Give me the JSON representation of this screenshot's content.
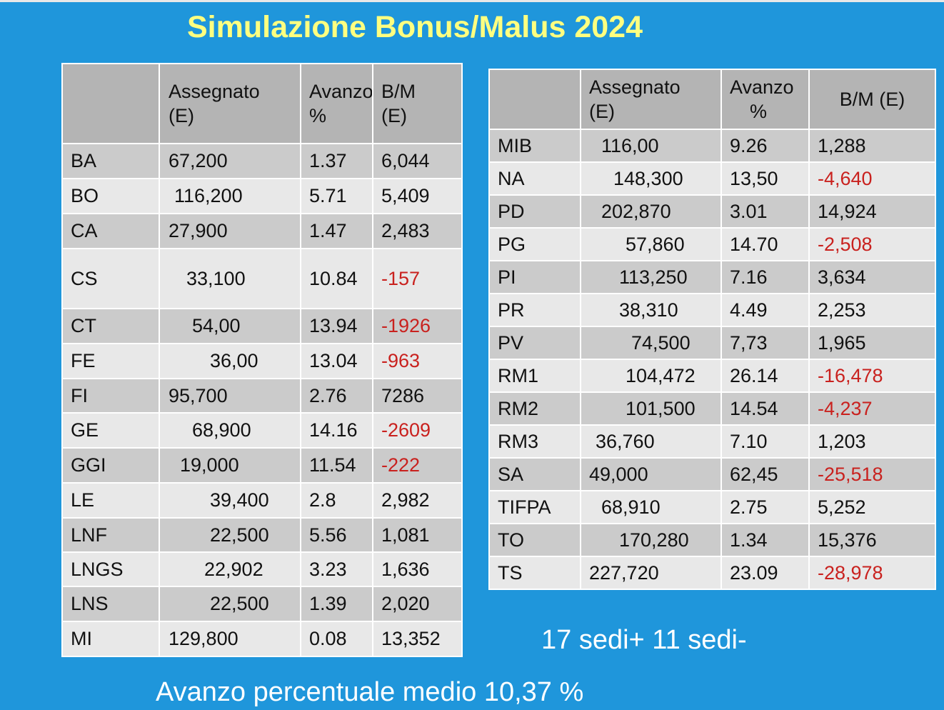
{
  "title": "Simulazione Bonus/Malus 2024",
  "colors": {
    "background": "#1f96db",
    "title": "#ffff80",
    "negative": "#c9211e"
  },
  "left_table": {
    "headers": [
      "",
      "Assegnato (E)",
      "Avanzo %",
      "B/M (E)"
    ],
    "rows": [
      {
        "sede": "BA",
        "assegnato": "67,200",
        "avanzo": "1.37",
        "bm": "6,044"
      },
      {
        "sede": "BO",
        "assegnato": "116,200",
        "avanzo": "5.71",
        "bm": "5,409"
      },
      {
        "sede": "CA",
        "assegnato": "27,900",
        "avanzo": "1.47",
        "bm": "2,483"
      },
      {
        "sede": "CS",
        "assegnato": "33,100",
        "avanzo": "10.84",
        "bm": "-157"
      },
      {
        "sede": "CT",
        "assegnato": "54,00",
        "avanzo": "13.94",
        "bm": "-1926"
      },
      {
        "sede": "FE",
        "assegnato": "36,00",
        "avanzo": "13.04",
        "bm": "-963"
      },
      {
        "sede": "FI",
        "assegnato": "95,700",
        "avanzo": "2.76",
        "bm": "7286"
      },
      {
        "sede": "GE",
        "assegnato": "68,900",
        "avanzo": "14.16",
        "bm": "-2609"
      },
      {
        "sede": "GGI",
        "assegnato": "19,000",
        "avanzo": "11.54",
        "bm": "-222"
      },
      {
        "sede": "LE",
        "assegnato": "39,400",
        "avanzo": "2.8",
        "bm": "2,982"
      },
      {
        "sede": "LNF",
        "assegnato": "22,500",
        "avanzo": "5.56",
        "bm": "1,081"
      },
      {
        "sede": "LNGS",
        "assegnato": "22,902",
        "avanzo": "3.23",
        "bm": "1,636"
      },
      {
        "sede": "LNS",
        "assegnato": "22,500",
        "avanzo": "1.39",
        "bm": "2,020"
      },
      {
        "sede": "MI",
        "assegnato": "129,800",
        "avanzo": "0.08",
        "bm": "13,352"
      }
    ]
  },
  "right_table": {
    "headers": [
      "",
      "Assegnato (E)",
      "Avanzo %",
      "B/M (E)"
    ],
    "rows": [
      {
        "sede": "MIB",
        "assegnato": "116,00",
        "avanzo": "9.26",
        "bm": "1,288"
      },
      {
        "sede": "NA",
        "assegnato": "148,300",
        "avanzo": "13,50",
        "bm": "-4,640"
      },
      {
        "sede": "PD",
        "assegnato": "202,870",
        "avanzo": "3.01",
        "bm": "14,924"
      },
      {
        "sede": "PG",
        "assegnato": "57,860",
        "avanzo": "14.70",
        "bm": "-2,508"
      },
      {
        "sede": "PI",
        "assegnato": "113,250",
        "avanzo": "7.16",
        "bm": "3,634"
      },
      {
        "sede": "PR",
        "assegnato": "38,310",
        "avanzo": "4.49",
        "bm": "2,253"
      },
      {
        "sede": "PV",
        "assegnato": "74,500",
        "avanzo": "7,73",
        "bm": "1,965"
      },
      {
        "sede": "RM1",
        "assegnato": "104,472",
        "avanzo": "26.14",
        "bm": "-16,478"
      },
      {
        "sede": "RM2",
        "assegnato": "101,500",
        "avanzo": "14.54",
        "bm": "-4,237"
      },
      {
        "sede": "RM3",
        "assegnato": "36,760",
        "avanzo": "7.10",
        "bm": "1,203"
      },
      {
        "sede": "SA",
        "assegnato": "49,000",
        "avanzo": "62,45",
        "bm": "-25,518"
      },
      {
        "sede": "TIFPA",
        "assegnato": "68,910",
        "avanzo": "2.75",
        "bm": "5,252"
      },
      {
        "sede": "TO",
        "assegnato": "170,280",
        "avanzo": "1.34",
        "bm": "15,376"
      },
      {
        "sede": "TS",
        "assegnato": "227,720",
        "avanzo": "23.09",
        "bm": "-28,978"
      }
    ]
  },
  "summary_sedi": "17 sedi+ 11 sedi-",
  "summary_avanzo": "Avanzo percentuale medio 10,37 %"
}
